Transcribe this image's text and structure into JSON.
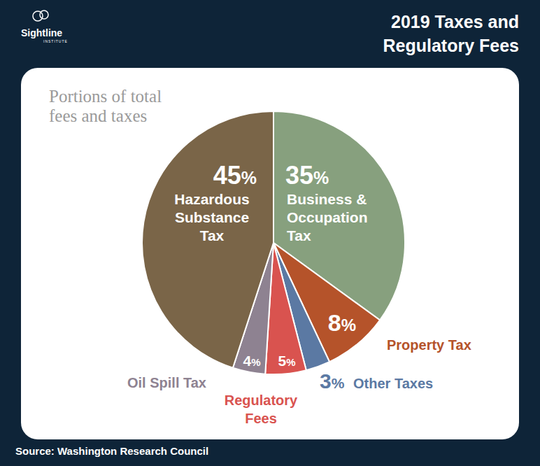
{
  "chart_data": {
    "type": "pie",
    "title": "2019 Taxes and Regulatory Fees",
    "subtitle": "Portions of total fees and taxes",
    "source": "Source: Washington Research Council",
    "logo": "Sightline",
    "logo_subtitle": "INSTITUTE",
    "categories": [
      "Business & Occupation Tax",
      "Property Tax",
      "Other Taxes",
      "Regulatory Fees",
      "Oil Spill Tax",
      "Hazardous Substance Tax"
    ],
    "values": [
      35,
      8,
      3,
      5,
      4,
      45
    ],
    "value_labels": [
      "35%",
      "8%",
      "3%",
      "5%",
      "4%",
      "45%"
    ],
    "colors": [
      "#87a07e",
      "#b5532a",
      "#5b79a3",
      "#d9534f",
      "#8e8291",
      "#7a6548"
    ],
    "data_labels": true,
    "legend": false
  }
}
